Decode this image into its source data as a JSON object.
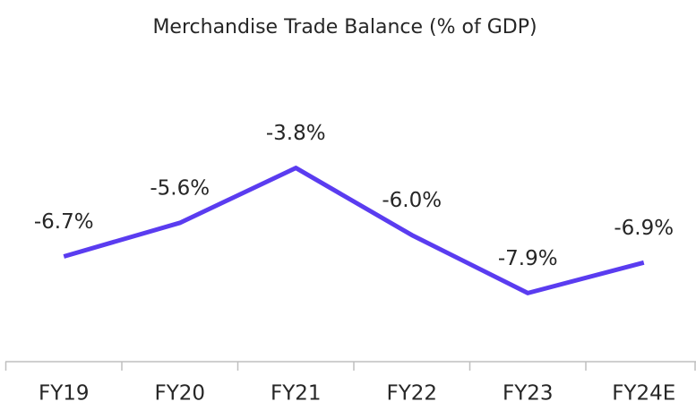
{
  "chart_data": {
    "type": "line",
    "title": "Merchandise Trade Balance (% of GDP)",
    "categories": [
      "FY19",
      "FY20",
      "FY21",
      "FY22",
      "FY23",
      "FY24E"
    ],
    "series": [
      {
        "color": "#5a3cf0",
        "values": [
          -6.7,
          -5.6,
          -3.8,
          -6.0,
          -7.9,
          -6.9
        ],
        "value_labels": [
          "-6.7%",
          "-5.6%",
          "-3.8%",
          "-6.0%",
          "-7.9%",
          "-6.9%"
        ]
      }
    ],
    "ylim": [
      -10,
      0
    ]
  }
}
